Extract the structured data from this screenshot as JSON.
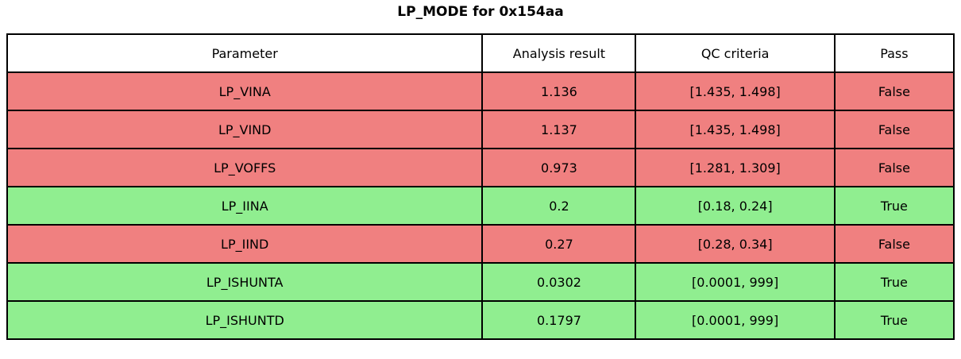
{
  "colors": {
    "fail_row": "#f08080",
    "pass_row": "#90ee90",
    "header_bg": "#ffffff",
    "border": "#000000",
    "text": "#000000"
  },
  "chart_data": {
    "type": "table",
    "title": "LP_MODE for 0x154aa",
    "columns": [
      "Parameter",
      "Analysis result",
      "QC criteria",
      "Pass"
    ],
    "rows": [
      {
        "parameter": "LP_VINA",
        "analysis_result": "1.136",
        "qc_criteria": "[1.435, 1.498]",
        "pass": "False"
      },
      {
        "parameter": "LP_VIND",
        "analysis_result": "1.137",
        "qc_criteria": "[1.435, 1.498]",
        "pass": "False"
      },
      {
        "parameter": "LP_VOFFS",
        "analysis_result": "0.973",
        "qc_criteria": "[1.281, 1.309]",
        "pass": "False"
      },
      {
        "parameter": "LP_IINA",
        "analysis_result": "0.2",
        "qc_criteria": "[0.18, 0.24]",
        "pass": "True"
      },
      {
        "parameter": "LP_IIND",
        "analysis_result": "0.27",
        "qc_criteria": "[0.28, 0.34]",
        "pass": "False"
      },
      {
        "parameter": "LP_ISHUNTA",
        "analysis_result": "0.0302",
        "qc_criteria": "[0.0001, 999]",
        "pass": "True"
      },
      {
        "parameter": "LP_ISHUNTD",
        "analysis_result": "0.1797",
        "qc_criteria": "[0.0001, 999]",
        "pass": "True"
      }
    ],
    "legend": "row background: red = fail, green = pass"
  }
}
